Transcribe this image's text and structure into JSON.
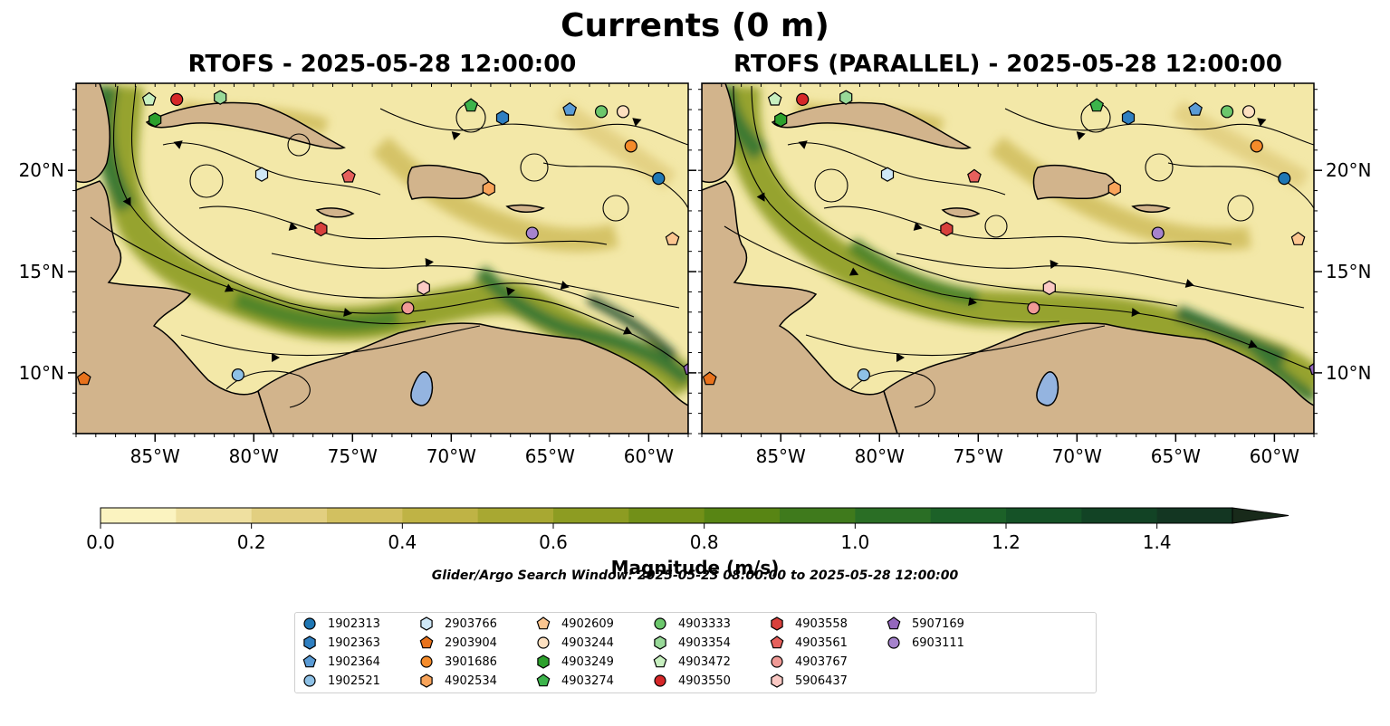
{
  "figure": {
    "title": "Currents (0 m)",
    "search_window": "Glider/Argo Search Window: 2025-05-23 08:00:00 to 2025-05-28 12:00:00"
  },
  "panels": [
    {
      "title": "RTOFS - 2025-05-28 12:00:00"
    },
    {
      "title": "RTOFS (PARALLEL) - 2025-05-28 12:00:00"
    }
  ],
  "map": {
    "extent": {
      "lon": [
        -89,
        -58
      ],
      "lat": [
        7,
        24.3
      ]
    },
    "lon_ticks": [
      {
        "value": -85,
        "label": "85°W"
      },
      {
        "value": -80,
        "label": "80°W"
      },
      {
        "value": -75,
        "label": "75°W"
      },
      {
        "value": -70,
        "label": "70°W"
      },
      {
        "value": -65,
        "label": "65°W"
      },
      {
        "value": -60,
        "label": "60°W"
      }
    ],
    "lat_ticks": [
      {
        "value": 20,
        "label": "20°N"
      },
      {
        "value": 15,
        "label": "15°N"
      },
      {
        "value": 10,
        "label": "10°N"
      }
    ],
    "colors": {
      "land": "#d2b48c",
      "lake": "#94b4e0",
      "streamline": "#000000",
      "water_base": "#f3e8a8"
    }
  },
  "colorbar": {
    "label": "Magnitude (m/s)",
    "ticks": [
      "0.0",
      "0.2",
      "0.4",
      "0.6",
      "0.8",
      "1.0",
      "1.2",
      "1.4"
    ],
    "tick_values": [
      0.0,
      0.2,
      0.4,
      0.6,
      0.8,
      1.0,
      1.2,
      1.4
    ],
    "range": [
      0,
      1.5
    ],
    "extend": "max",
    "colors": [
      "#fbf3c0",
      "#efe0a0",
      "#e2cf80",
      "#d2c060",
      "#bfb345",
      "#a8a832",
      "#8d9c22",
      "#729018",
      "#588514",
      "#3f7a1c",
      "#2a6e25",
      "#1c6128",
      "#155227",
      "#124325",
      "#133622",
      "#182a1a"
    ]
  },
  "legend": [
    {
      "id": "1902313",
      "shape": "circle",
      "color": "#1f77b4"
    },
    {
      "id": "1902363",
      "shape": "hexagon",
      "color": "#2f7fc1"
    },
    {
      "id": "1902364",
      "shape": "pentagon",
      "color": "#5a9bd5"
    },
    {
      "id": "1902521",
      "shape": "circle",
      "color": "#8ec1e6"
    },
    {
      "id": "2903766",
      "shape": "hexagon",
      "color": "#cfe8f7"
    },
    {
      "id": "2903904",
      "shape": "pentagon",
      "color": "#e8721c"
    },
    {
      "id": "3901686",
      "shape": "circle",
      "color": "#f58b2a"
    },
    {
      "id": "4902534",
      "shape": "hexagon",
      "color": "#f9a45a"
    },
    {
      "id": "4902609",
      "shape": "pentagon",
      "color": "#fcc690"
    },
    {
      "id": "4903244",
      "shape": "circle",
      "color": "#fde0c0"
    },
    {
      "id": "4903249",
      "shape": "hexagon",
      "color": "#2ca02c"
    },
    {
      "id": "4903274",
      "shape": "pentagon",
      "color": "#3cb44b"
    },
    {
      "id": "4903333",
      "shape": "circle",
      "color": "#6cc76c"
    },
    {
      "id": "4903354",
      "shape": "hexagon",
      "color": "#98d998"
    },
    {
      "id": "4903472",
      "shape": "pentagon",
      "color": "#c8f0c0"
    },
    {
      "id": "4903550",
      "shape": "circle",
      "color": "#d62728"
    },
    {
      "id": "4903558",
      "shape": "hexagon",
      "color": "#d8403c"
    },
    {
      "id": "4903561",
      "shape": "pentagon",
      "color": "#e6605c"
    },
    {
      "id": "4903767",
      "shape": "circle",
      "color": "#f09a96"
    },
    {
      "id": "5906437",
      "shape": "hexagon",
      "color": "#fbc9c4"
    },
    {
      "id": "5907169",
      "shape": "pentagon",
      "color": "#9467bd"
    },
    {
      "id": "6903111",
      "shape": "circle",
      "color": "#a683cd"
    }
  ],
  "floats": [
    {
      "id": "4903472",
      "lon": -85.3,
      "lat": 23.5
    },
    {
      "id": "4903550",
      "lon": -83.9,
      "lat": 23.5
    },
    {
      "id": "4903354",
      "lon": -81.7,
      "lat": 23.6
    },
    {
      "id": "4903249",
      "lon": -85.0,
      "lat": 22.5
    },
    {
      "id": "4903274",
      "lon": -69.0,
      "lat": 23.2
    },
    {
      "id": "1902363",
      "lon": -67.4,
      "lat": 22.6
    },
    {
      "id": "1902364",
      "lon": -64.0,
      "lat": 23.0
    },
    {
      "id": "4903333",
      "lon": -62.4,
      "lat": 22.9
    },
    {
      "id": "4903244",
      "lon": -61.3,
      "lat": 22.9
    },
    {
      "id": "3901686",
      "lon": -60.9,
      "lat": 21.2
    },
    {
      "id": "1902313",
      "lon": -59.5,
      "lat": 19.6
    },
    {
      "id": "2903766",
      "lon": -79.6,
      "lat": 19.8
    },
    {
      "id": "4903561",
      "lon": -75.2,
      "lat": 19.7
    },
    {
      "id": "4902534",
      "lon": -68.1,
      "lat": 19.1
    },
    {
      "id": "4903558",
      "lon": -76.6,
      "lat": 17.1
    },
    {
      "id": "6903111",
      "lon": -65.9,
      "lat": 16.9
    },
    {
      "id": "4902609",
      "lon": -58.8,
      "lat": 16.6
    },
    {
      "id": "5906437",
      "lon": -71.4,
      "lat": 14.2
    },
    {
      "id": "4903767",
      "lon": -72.2,
      "lat": 13.2
    },
    {
      "id": "1902521",
      "lon": -80.8,
      "lat": 9.9
    },
    {
      "id": "2903904",
      "lon": -88.6,
      "lat": 9.7
    },
    {
      "id": "5907169",
      "lon": -57.9,
      "lat": 10.2
    }
  ]
}
